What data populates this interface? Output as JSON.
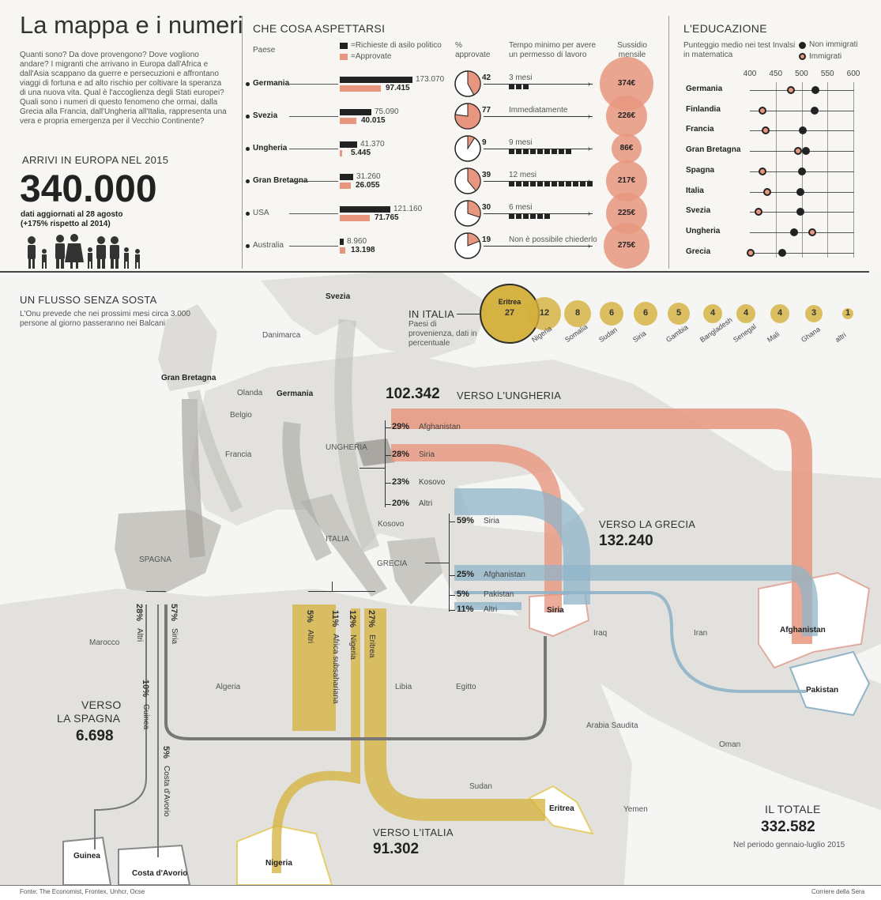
{
  "title": "La mappa e i numeri",
  "intro": "Quanti sono? Da dove provengono? Dove vogliono andare? I migranti che arrivano in Europa dall'Africa e dall'Asia scappano da guerre e persecuzioni e affrontano viaggi di fortuna e ad alto rischio per coltivare la speranza di una nuova vita. Qual è l'accoglienza degli Stati europei? Quali sono i numeri di questo fenomeno che ormai, dalla Grecia alla Francia, dall'Ungheria all'Italia, rappresenta una vera e propria emergenza per il Vecchio Continente?",
  "arrivals": {
    "label": "ARRIVI IN EUROPA NEL 2015",
    "value": "340.000",
    "note1": "dati aggiornati al 28 agosto",
    "note2": "(+175% rispetto al 2014)"
  },
  "expect": {
    "title": "CHE COSA ASPETTARSI",
    "col_country": "Paese",
    "legend_requests": "=Richieste di asilo politico",
    "legend_approved": "=Approvate",
    "col_pct": "% approvate",
    "col_time": "Tempo minimo per avere un permesso di lavoro",
    "col_subsidy": "Sussidio mensile",
    "rows": [
      {
        "country": "Germania",
        "requests": "173.070",
        "approved": "97.415",
        "req_n": 173070,
        "app_n": 97415,
        "pct": "42",
        "pct_n": 42,
        "time": "3 mesi",
        "blocks": 3,
        "subsidy": "374€",
        "sub_n": 374
      },
      {
        "country": "Svezia",
        "requests": "75.090",
        "approved": "40.015",
        "req_n": 75090,
        "app_n": 40015,
        "pct": "77",
        "pct_n": 77,
        "time": "Immediatamente",
        "blocks": 0,
        "subsidy": "226€",
        "sub_n": 226
      },
      {
        "country": "Ungheria",
        "requests": "41.370",
        "approved": "5.445",
        "req_n": 41370,
        "app_n": 5445,
        "pct": "9",
        "pct_n": 9,
        "time": "9 mesi",
        "blocks": 9,
        "subsidy": "86€",
        "sub_n": 86
      },
      {
        "country": "Gran Bretagna",
        "requests": "31.260",
        "approved": "26.055",
        "req_n": 31260,
        "app_n": 26055,
        "pct": "39",
        "pct_n": 39,
        "time": "12 mesi",
        "blocks": 12,
        "subsidy": "217€",
        "sub_n": 217
      },
      {
        "country": "USA",
        "requests": "121.160",
        "approved": "71.765",
        "req_n": 121160,
        "app_n": 71765,
        "pct": "30",
        "pct_n": 30,
        "time": "6 mesi",
        "blocks": 6,
        "subsidy": "225€",
        "sub_n": 225
      },
      {
        "country": "Australia",
        "requests": "8.960",
        "approved": "13.198",
        "req_n": 8960,
        "app_n": 13198,
        "pct": "19",
        "pct_n": 19,
        "time": "Non è possibile chiederlo",
        "blocks": 0,
        "subsidy": "275€",
        "sub_n": 275
      }
    ]
  },
  "education": {
    "title": "L'EDUCAZIONE",
    "subtitle": "Punteggio medio nei test Invalsi in matematica",
    "legend_non": "Non immigrati",
    "legend_imm": "Immigrati",
    "ticks": [
      "400",
      "450",
      "500",
      "550",
      "600"
    ],
    "rows": [
      {
        "country": "Germania",
        "non": 527,
        "imm": 480
      },
      {
        "country": "Finlandia",
        "non": 525,
        "imm": 425
      },
      {
        "country": "Francia",
        "non": 503,
        "imm": 430
      },
      {
        "country": "Gran Bretagna",
        "non": 508,
        "imm": 493
      },
      {
        "country": "Spagna",
        "non": 500,
        "imm": 425
      },
      {
        "country": "Italia",
        "non": 498,
        "imm": 434
      },
      {
        "country": "Svezia",
        "non": 497,
        "imm": 417
      },
      {
        "country": "Ungheria",
        "non": 485,
        "imm": 520
      },
      {
        "country": "Grecia",
        "non": 462,
        "imm": 402
      }
    ]
  },
  "flow": {
    "title": "UN FLUSSO SENZA SOSTA",
    "subtitle": "L'Onu prevede che nei prossimi mesi circa 3.000 persone al giorno passeranno nei Balcani"
  },
  "italy_origins": {
    "title": "IN ITALIA",
    "subtitle": "Paesi di provenienza, dati in percentuale",
    "items": [
      {
        "name": "Eritrea",
        "value": "27",
        "n": 27
      },
      {
        "name": "Nigeria",
        "value": "12",
        "n": 12
      },
      {
        "name": "Somalia",
        "value": "8",
        "n": 8
      },
      {
        "name": "Sudan",
        "value": "6",
        "n": 6
      },
      {
        "name": "Siria",
        "value": "6",
        "n": 6
      },
      {
        "name": "Gambia",
        "value": "5",
        "n": 5
      },
      {
        "name": "Bangladesh",
        "value": "4",
        "n": 4
      },
      {
        "name": "Senegal",
        "value": "4",
        "n": 4
      },
      {
        "name": "Mali",
        "value": "4",
        "n": 4
      },
      {
        "name": "Ghana",
        "value": "3",
        "n": 3
      },
      {
        "name": "altri",
        "value": "1",
        "n": 1
      }
    ]
  },
  "hungary": {
    "value": "102.342",
    "label": "VERSO L'UNGHERIA",
    "items": [
      {
        "pct": "29%",
        "name": "Afghanistan"
      },
      {
        "pct": "28%",
        "name": "Siria"
      },
      {
        "pct": "23%",
        "name": "Kosovo"
      },
      {
        "pct": "20%",
        "name": "Altri"
      }
    ]
  },
  "greece": {
    "label": "VERSO LA GRECIA",
    "value": "132.240",
    "items": [
      {
        "pct": "59%",
        "name": "Siria"
      },
      {
        "pct": "25%",
        "name": "Afghanistan"
      },
      {
        "pct": "5%",
        "name": "Pakistan"
      },
      {
        "pct": "11%",
        "name": "Altri"
      }
    ]
  },
  "italy": {
    "label": "VERSO L'ITALIA",
    "value": "91.302",
    "items": [
      {
        "pct": "5%",
        "name": "Altri"
      },
      {
        "pct": "11%",
        "name": "Africa subsahariana"
      },
      {
        "pct": "12%",
        "name": "Nigeria"
      },
      {
        "pct": "27%",
        "name": "Eritrea"
      }
    ]
  },
  "spain": {
    "label1": "VERSO",
    "label2": "LA SPAGNA",
    "value": "6.698",
    "items": [
      {
        "pct": "28%",
        "name": "Altri"
      },
      {
        "pct": "57%",
        "name": "Siria"
      },
      {
        "pct": "10%",
        "name": "Guinea"
      },
      {
        "pct": "5%",
        "name": "Costa d'Avorio"
      }
    ]
  },
  "total": {
    "label": "IL TOTALE",
    "value": "332.582",
    "note": "Nel periodo gennaio-luglio 2015"
  },
  "map_labels": {
    "svezia": "Svezia",
    "danimarca": "Danimarca",
    "gran_bretagna": "Gran Bretagna",
    "olanda": "Olanda",
    "germania": "Germania",
    "belgio": "Belgio",
    "francia": "Francia",
    "ungheria": "UNGHERIA",
    "kosovo": "Kosovo",
    "italia": "ITALIA",
    "grecia": "GRECIA",
    "spagna": "SPAGNA",
    "marocco": "Marocco",
    "algeria": "Algeria",
    "libia": "Libia",
    "egitto": "Egitto",
    "siria": "Siria",
    "iraq": "Iraq",
    "iran": "Iran",
    "afghanistan": "Afghanistan",
    "pakistan": "Pakistan",
    "arabia": "Arabia Saudita",
    "oman": "Oman",
    "sudan": "Sudan",
    "eritrea": "Eritrea",
    "yemen": "Yemen",
    "guinea": "Guinea",
    "costa_avorio": "Costa d'Avorio",
    "nigeria": "Nigeria"
  },
  "source": "Fonte: The Economist, Frontex, Unhcr, Ocse",
  "credit": "Corriere della Sera",
  "colors": {
    "pink": "#e8967f",
    "black": "#222222",
    "gold": "#d4b03a",
    "blue": "#8fb4c8",
    "grey": "#8a8a8a"
  }
}
